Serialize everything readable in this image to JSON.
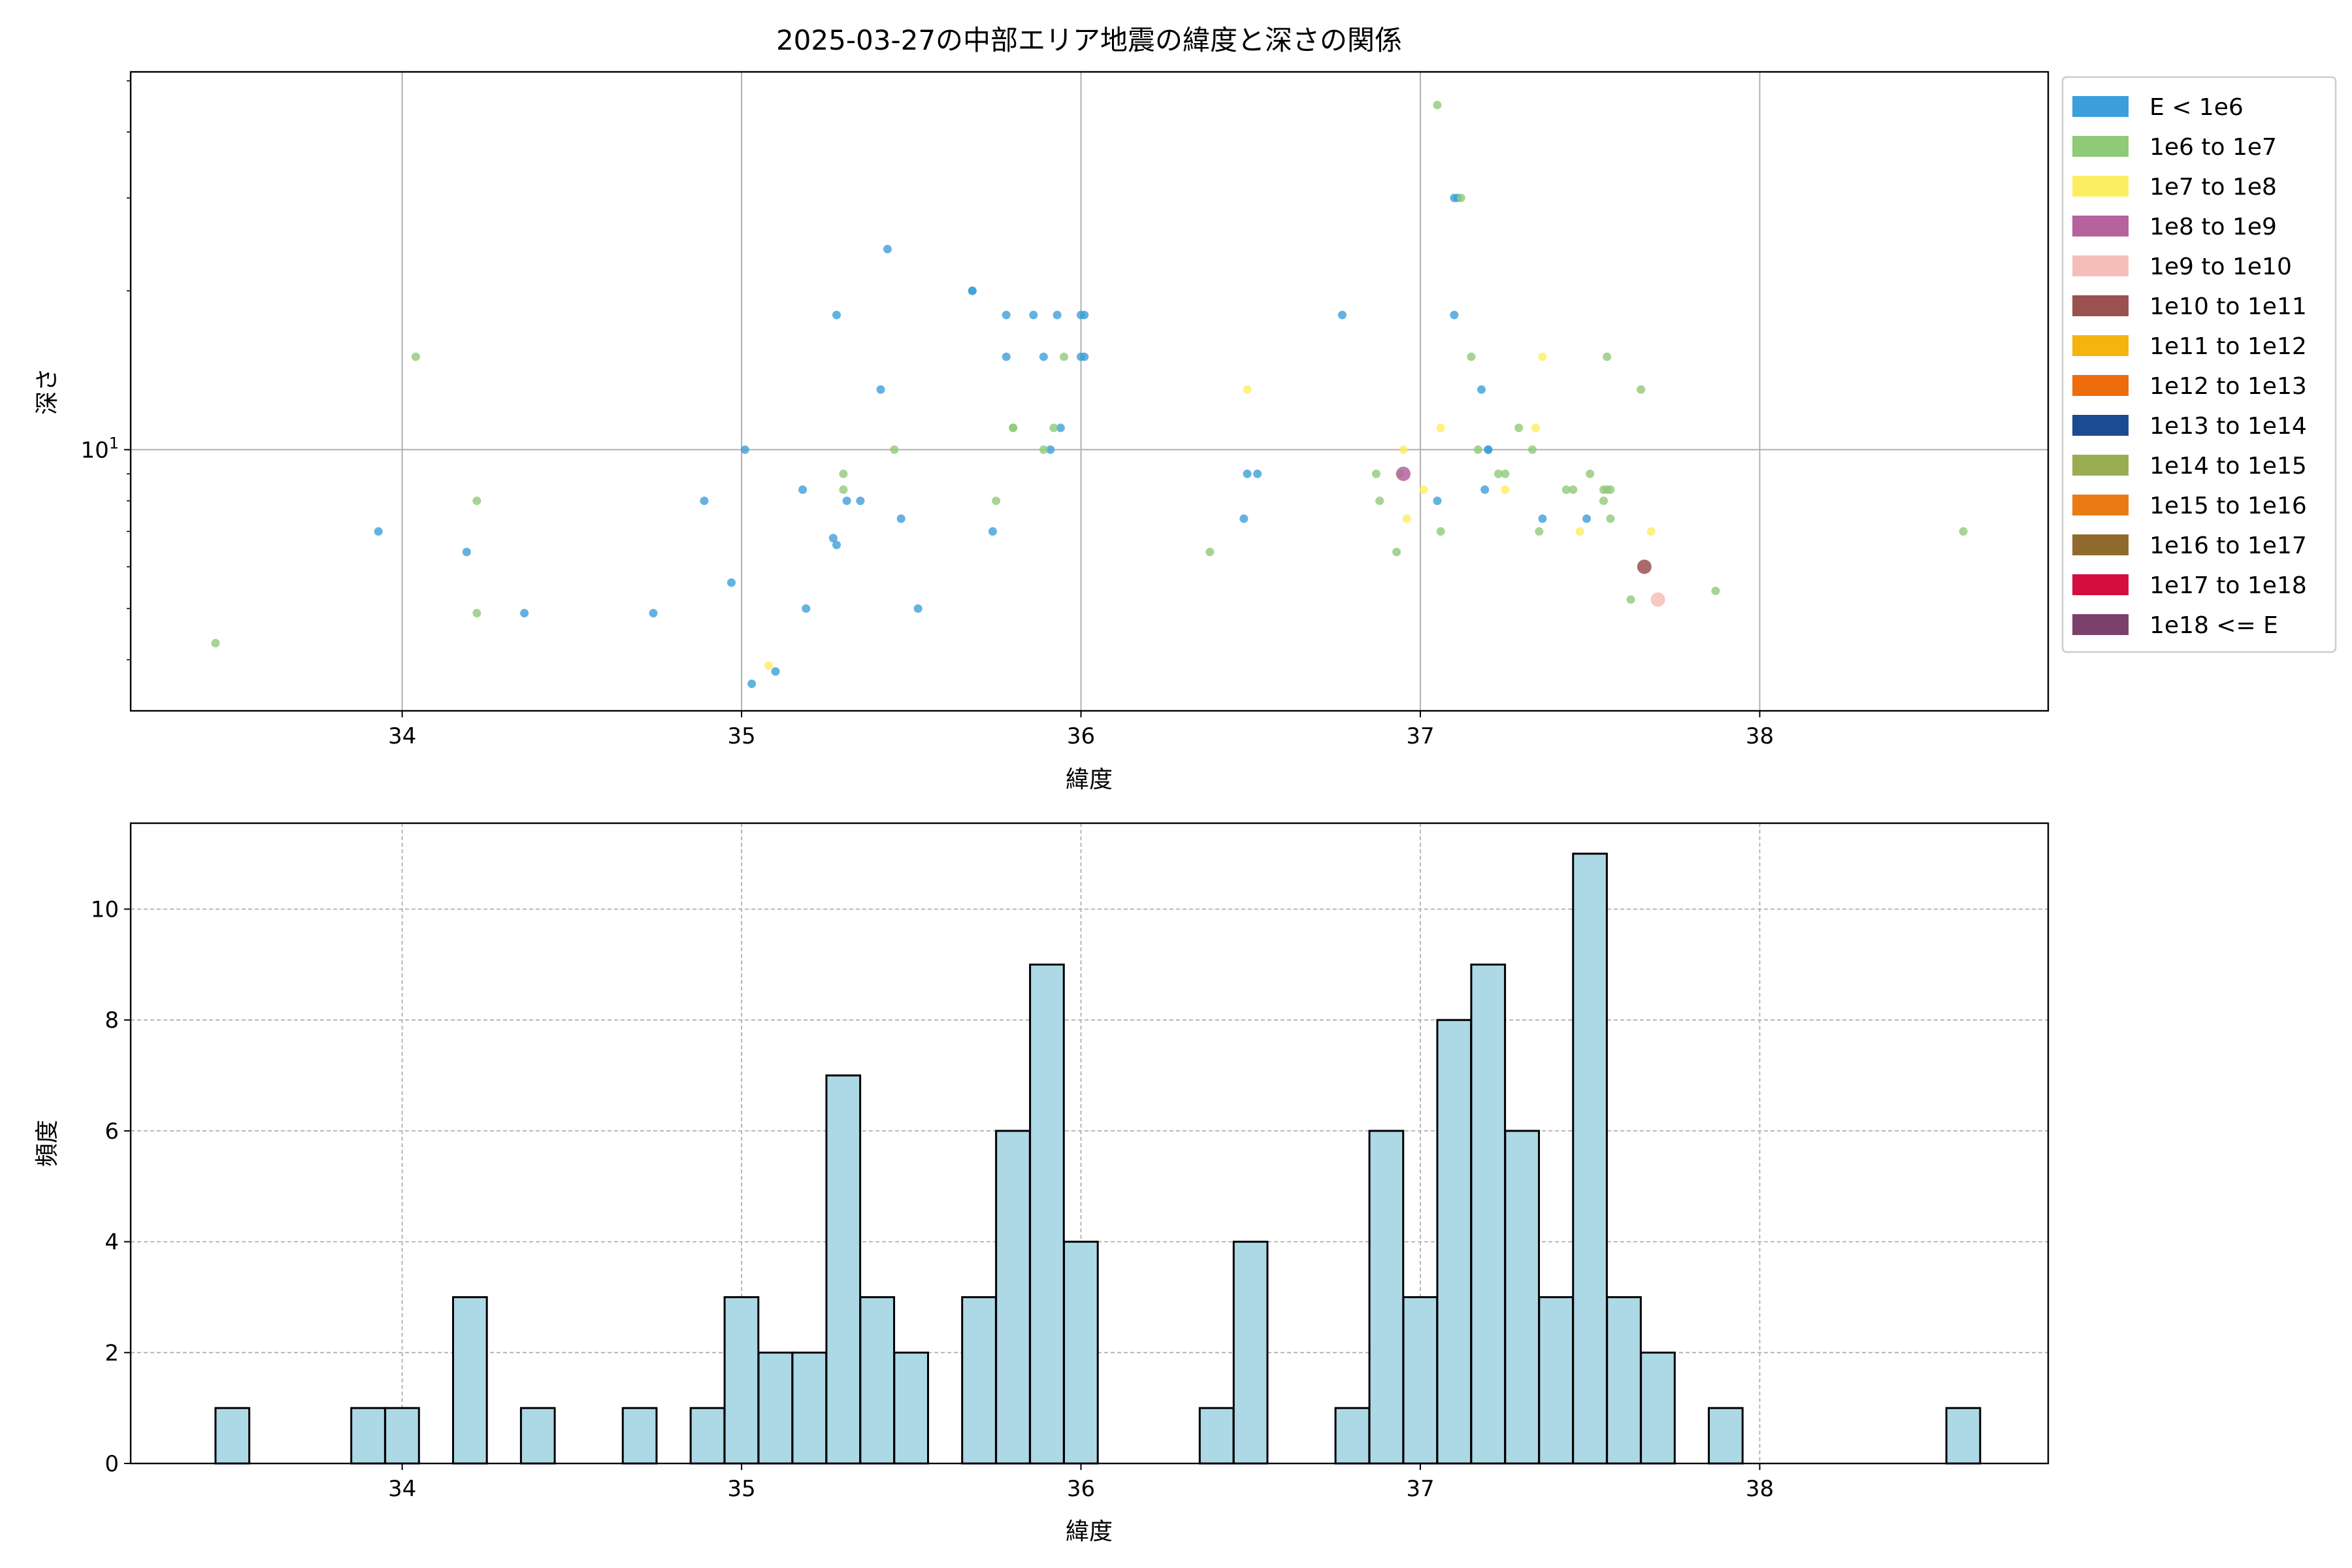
{
  "chart_data": [
    {
      "type": "scatter",
      "title": "2025-03-27の中部エリア地震の緯度と深さの関係",
      "xlabel": "緯度",
      "ylabel": "深さ",
      "yscale": "log",
      "xlim": [
        33.2,
        38.85
      ],
      "ylim": [
        3.2,
        52
      ],
      "x_ticks": [
        34,
        35,
        36,
        37,
        38
      ],
      "y_ticks": [
        {
          "value": 10,
          "base": "10",
          "exp": "1"
        }
      ],
      "grid": true,
      "legend_position": "outside-right",
      "legend": [
        {
          "label": "E < 1e6",
          "color": "#3c9fdb"
        },
        {
          "label": "1e6 to 1e7",
          "color": "#90c978"
        },
        {
          "label": "1e7 to 1e8",
          "color": "#fcee62"
        },
        {
          "label": "1e8 to 1e9",
          "color": "#b5629f"
        },
        {
          "label": "1e9 to 1e10",
          "color": "#f5bfb9"
        },
        {
          "label": "1e10 to 1e11",
          "color": "#9a5150"
        },
        {
          "label": "1e11 to 1e12",
          "color": "#f6b40e"
        },
        {
          "label": "1e12 to 1e13",
          "color": "#ee6c0b"
        },
        {
          "label": "1e13 to 1e14",
          "color": "#1d4b91"
        },
        {
          "label": "1e14 to 1e15",
          "color": "#9bad52"
        },
        {
          "label": "1e15 to 1e16",
          "color": "#ea7a14"
        },
        {
          "label": "1e16 to 1e17",
          "color": "#906a2c"
        },
        {
          "label": "1e17 to 1e18",
          "color": "#d50d3f"
        },
        {
          "label": "1e18 <= E",
          "color": "#7a416a"
        }
      ],
      "series": [
        {
          "legend_index": 0,
          "points": [
            [
              33.93,
              7.0
            ],
            [
              34.19,
              6.4
            ],
            [
              34.36,
              4.9
            ],
            [
              34.74,
              4.9
            ],
            [
              34.89,
              8.0
            ],
            [
              34.97,
              5.6
            ],
            [
              35.01,
              10.0
            ],
            [
              35.03,
              3.6
            ],
            [
              35.1,
              3.8
            ],
            [
              35.18,
              8.4
            ],
            [
              35.19,
              5.0
            ],
            [
              35.27,
              6.8
            ],
            [
              35.28,
              18.0
            ],
            [
              35.28,
              6.6
            ],
            [
              35.31,
              8.0
            ],
            [
              35.35,
              8.0
            ],
            [
              35.41,
              13.0
            ],
            [
              35.43,
              24.0
            ],
            [
              35.47,
              7.4
            ],
            [
              35.52,
              5.0
            ],
            [
              35.68,
              20.0
            ],
            [
              35.68,
              20.0
            ],
            [
              35.74,
              7.0
            ],
            [
              35.78,
              18.0
            ],
            [
              35.78,
              15.0
            ],
            [
              35.86,
              18.0
            ],
            [
              35.89,
              15.0
            ],
            [
              35.91,
              10.0
            ],
            [
              35.93,
              18.0
            ],
            [
              35.94,
              11.0
            ],
            [
              36.0,
              18.0
            ],
            [
              36.01,
              18.0
            ],
            [
              36.01,
              15.0
            ],
            [
              36.0,
              15.0
            ],
            [
              36.48,
              7.4
            ],
            [
              36.49,
              9.0
            ],
            [
              36.52,
              9.0
            ],
            [
              36.77,
              18.0
            ],
            [
              37.05,
              8.0
            ],
            [
              37.1,
              18.0
            ],
            [
              37.1,
              30.0
            ],
            [
              37.11,
              30.0
            ],
            [
              37.18,
              13.0
            ],
            [
              37.2,
              10.0
            ],
            [
              37.19,
              8.4
            ],
            [
              37.2,
              10.0
            ],
            [
              37.36,
              7.4
            ],
            [
              37.49,
              7.4
            ]
          ]
        },
        {
          "legend_index": 1,
          "points": [
            [
              33.45,
              4.3
            ],
            [
              34.04,
              15.0
            ],
            [
              34.22,
              8.0
            ],
            [
              34.22,
              4.9
            ],
            [
              35.3,
              9.0
            ],
            [
              35.3,
              8.4
            ],
            [
              35.45,
              10.0
            ],
            [
              35.75,
              8.0
            ],
            [
              35.8,
              11.0
            ],
            [
              35.8,
              11.0
            ],
            [
              35.89,
              10.0
            ],
            [
              35.92,
              11.0
            ],
            [
              35.95,
              15.0
            ],
            [
              36.38,
              6.4
            ],
            [
              36.87,
              9.0
            ],
            [
              36.88,
              8.0
            ],
            [
              36.93,
              6.4
            ],
            [
              36.94,
              9.0
            ],
            [
              37.05,
              45.0
            ],
            [
              37.06,
              7.0
            ],
            [
              37.12,
              30.0
            ],
            [
              37.15,
              15.0
            ],
            [
              37.17,
              10.0
            ],
            [
              37.23,
              9.0
            ],
            [
              37.25,
              9.0
            ],
            [
              37.29,
              11.0
            ],
            [
              37.33,
              10.0
            ],
            [
              37.35,
              7.0
            ],
            [
              37.43,
              8.4
            ],
            [
              37.45,
              8.4
            ],
            [
              37.5,
              9.0
            ],
            [
              37.54,
              8.4
            ],
            [
              37.54,
              8.0
            ],
            [
              37.55,
              8.4
            ],
            [
              37.56,
              7.4
            ],
            [
              37.56,
              8.4
            ],
            [
              37.55,
              15.0
            ],
            [
              37.62,
              5.2
            ],
            [
              37.65,
              13.0
            ],
            [
              37.87,
              5.4
            ],
            [
              38.6,
              7.0
            ]
          ]
        },
        {
          "legend_index": 2,
          "points": [
            [
              35.08,
              3.9
            ],
            [
              36.49,
              13.0
            ],
            [
              36.95,
              10.0
            ],
            [
              36.96,
              7.4
            ],
            [
              37.01,
              8.4
            ],
            [
              37.06,
              11.0
            ],
            [
              37.25,
              8.4
            ],
            [
              37.34,
              11.0
            ],
            [
              37.36,
              15.0
            ],
            [
              37.47,
              7.0
            ],
            [
              37.68,
              7.0
            ]
          ]
        },
        {
          "legend_index": 3,
          "points": [
            [
              36.95,
              9.0
            ]
          ]
        },
        {
          "legend_index": 4,
          "points": [
            [
              37.7,
              5.2
            ]
          ]
        },
        {
          "legend_index": 5,
          "points": [
            [
              37.66,
              6.0
            ]
          ]
        }
      ]
    },
    {
      "type": "histogram",
      "xlabel": "緯度",
      "ylabel": "頻度",
      "xlim": [
        33.2,
        38.85
      ],
      "ylim": [
        0,
        11.55
      ],
      "x_ticks": [
        34,
        35,
        36,
        37,
        38
      ],
      "y_ticks": [
        0,
        2,
        4,
        6,
        8,
        10
      ],
      "grid": "dashed",
      "bin_width": 0.0995,
      "bar_color": "#add8e6",
      "bins": [
        {
          "start": 33.45,
          "count": 1
        },
        {
          "start": 33.85,
          "count": 1
        },
        {
          "start": 33.95,
          "count": 1
        },
        {
          "start": 34.15,
          "count": 3
        },
        {
          "start": 34.35,
          "count": 1
        },
        {
          "start": 34.65,
          "count": 1
        },
        {
          "start": 34.85,
          "count": 1
        },
        {
          "start": 34.95,
          "count": 3
        },
        {
          "start": 35.05,
          "count": 2
        },
        {
          "start": 35.15,
          "count": 2
        },
        {
          "start": 35.25,
          "count": 7
        },
        {
          "start": 35.35,
          "count": 3
        },
        {
          "start": 35.45,
          "count": 2
        },
        {
          "start": 35.65,
          "count": 3
        },
        {
          "start": 35.75,
          "count": 6
        },
        {
          "start": 35.85,
          "count": 9
        },
        {
          "start": 35.95,
          "count": 4
        },
        {
          "start": 36.35,
          "count": 1
        },
        {
          "start": 36.45,
          "count": 4
        },
        {
          "start": 36.75,
          "count": 1
        },
        {
          "start": 36.85,
          "count": 6
        },
        {
          "start": 36.95,
          "count": 3
        },
        {
          "start": 37.05,
          "count": 8
        },
        {
          "start": 37.15,
          "count": 9
        },
        {
          "start": 37.25,
          "count": 6
        },
        {
          "start": 37.35,
          "count": 3
        },
        {
          "start": 37.45,
          "count": 11
        },
        {
          "start": 37.55,
          "count": 3
        },
        {
          "start": 37.65,
          "count": 2
        },
        {
          "start": 37.85,
          "count": 1
        },
        {
          "start": 38.55,
          "count": 1
        }
      ]
    }
  ]
}
